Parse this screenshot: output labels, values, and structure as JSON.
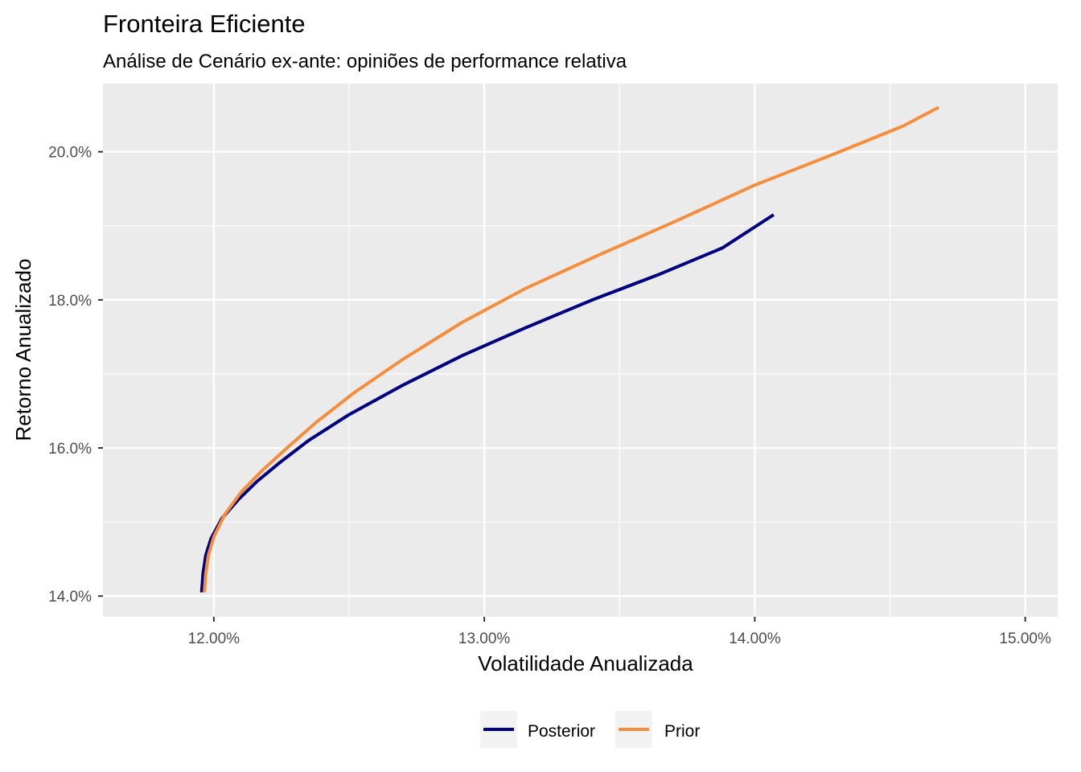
{
  "chart_data": {
    "type": "line",
    "title": "Fronteira Eficiente",
    "subtitle": "Análise de Cenário ex-ante: opiniões de performance relativa",
    "xlabel": "Volatilidade Anualizada",
    "ylabel": "Retorno Anualizado",
    "x_unit": "percent",
    "y_unit": "percent",
    "xlim": [
      11.59,
      15.12
    ],
    "ylim": [
      13.72,
      20.92
    ],
    "x_ticks": [
      12.0,
      13.0,
      14.0,
      15.0
    ],
    "x_tick_labels": [
      "12.00%",
      "13.00%",
      "14.00%",
      "15.00%"
    ],
    "y_ticks": [
      14.0,
      16.0,
      18.0,
      20.0
    ],
    "y_tick_labels": [
      "14.0%",
      "16.0%",
      "18.0%",
      "20.0%"
    ],
    "grid": true,
    "legend_position": "bottom",
    "series": [
      {
        "name": "Posterior",
        "color": "#000080",
        "points": [
          [
            11.955,
            14.05
          ],
          [
            11.96,
            14.3
          ],
          [
            11.97,
            14.55
          ],
          [
            11.99,
            14.78
          ],
          [
            12.03,
            15.05
          ],
          [
            12.09,
            15.3
          ],
          [
            12.16,
            15.55
          ],
          [
            12.25,
            15.82
          ],
          [
            12.35,
            16.1
          ],
          [
            12.5,
            16.45
          ],
          [
            12.7,
            16.85
          ],
          [
            12.92,
            17.25
          ],
          [
            13.15,
            17.62
          ],
          [
            13.4,
            18.0
          ],
          [
            13.65,
            18.35
          ],
          [
            13.88,
            18.7
          ],
          [
            14.07,
            19.15
          ]
        ]
      },
      {
        "name": "Prior",
        "color": "#F58E3C",
        "points": [
          [
            11.965,
            14.05
          ],
          [
            11.97,
            14.3
          ],
          [
            11.98,
            14.55
          ],
          [
            12.0,
            14.8
          ],
          [
            12.04,
            15.1
          ],
          [
            12.1,
            15.4
          ],
          [
            12.18,
            15.7
          ],
          [
            12.27,
            16.0
          ],
          [
            12.38,
            16.35
          ],
          [
            12.52,
            16.75
          ],
          [
            12.7,
            17.2
          ],
          [
            12.92,
            17.7
          ],
          [
            13.15,
            18.15
          ],
          [
            13.42,
            18.6
          ],
          [
            13.7,
            19.05
          ],
          [
            14.0,
            19.55
          ],
          [
            14.3,
            19.98
          ],
          [
            14.55,
            20.35
          ],
          [
            14.68,
            20.6
          ]
        ]
      }
    ]
  }
}
